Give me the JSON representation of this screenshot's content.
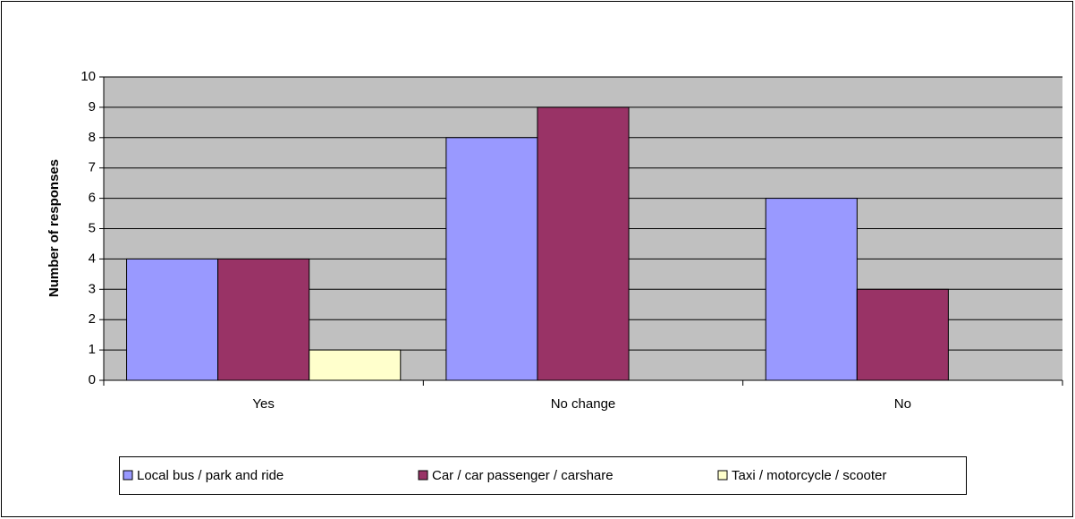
{
  "chart_data": {
    "type": "bar",
    "y_label": "Number of responses",
    "categories": [
      "Yes",
      "No change",
      "No"
    ],
    "series": [
      {
        "name": "Local bus / park and ride",
        "color": "#9999ff",
        "values": [
          4,
          8,
          6
        ]
      },
      {
        "name": "Car / car passenger / carshare",
        "color": "#993366",
        "values": [
          4,
          9,
          3
        ]
      },
      {
        "name": "Taxi / motorcycle / scooter",
        "color": "#ffffcc",
        "values": [
          1,
          0,
          0
        ]
      }
    ],
    "ylim": [
      0,
      10
    ],
    "yticks": [
      0,
      1,
      2,
      3,
      4,
      5,
      6,
      7,
      8,
      9,
      10
    ],
    "grid": true,
    "legend": "bottom"
  }
}
